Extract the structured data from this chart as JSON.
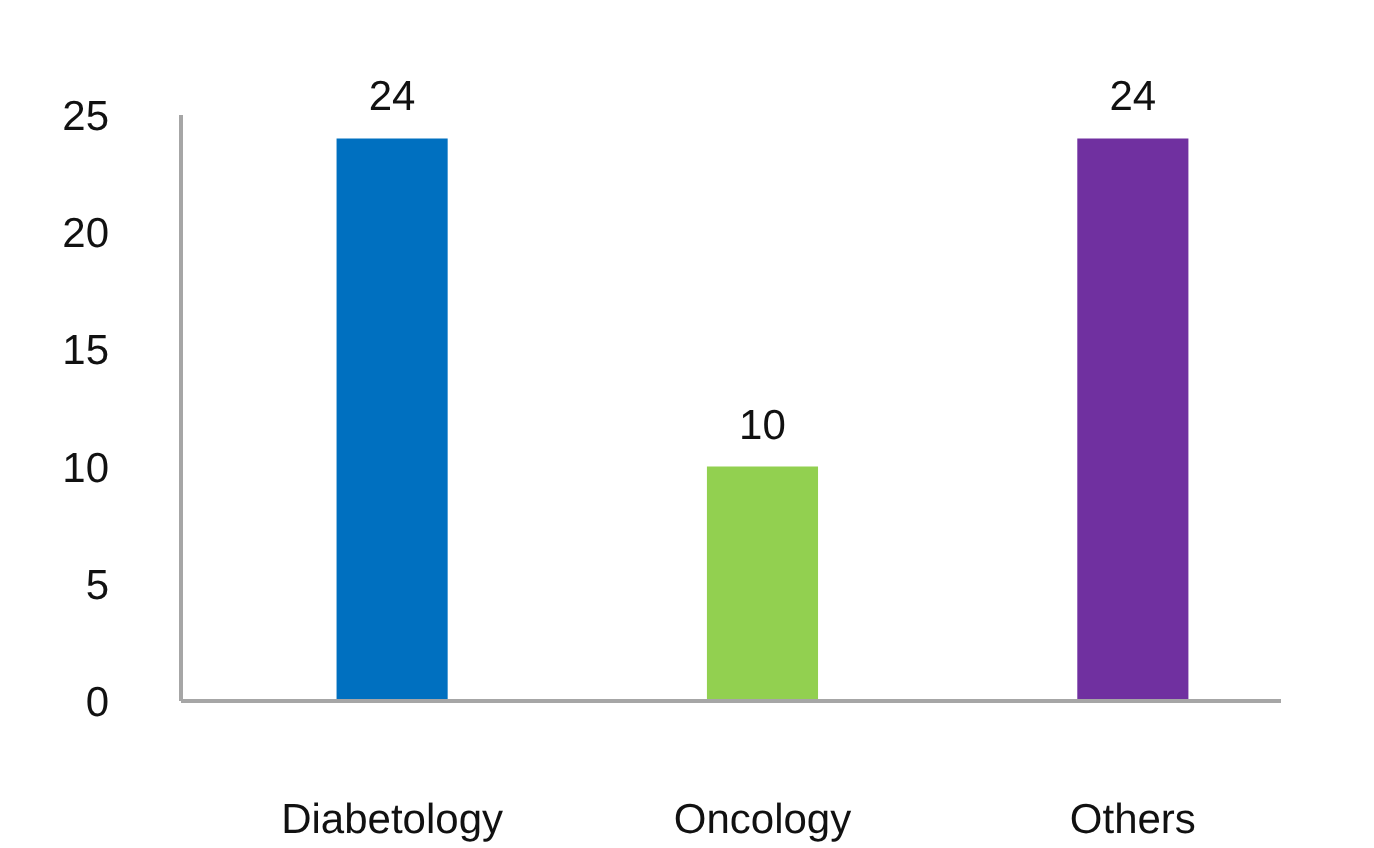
{
  "chart_data": {
    "type": "bar",
    "categories": [
      "Diabetology",
      "Oncology",
      "Others"
    ],
    "values": [
      24,
      10,
      24
    ],
    "colors": [
      "#0070c0",
      "#92d050",
      "#7030a0"
    ],
    "ylim": [
      0,
      25
    ],
    "yticks": [
      0,
      5,
      10,
      15,
      20,
      25
    ],
    "grid": false,
    "legend": false,
    "data_labels": true
  }
}
